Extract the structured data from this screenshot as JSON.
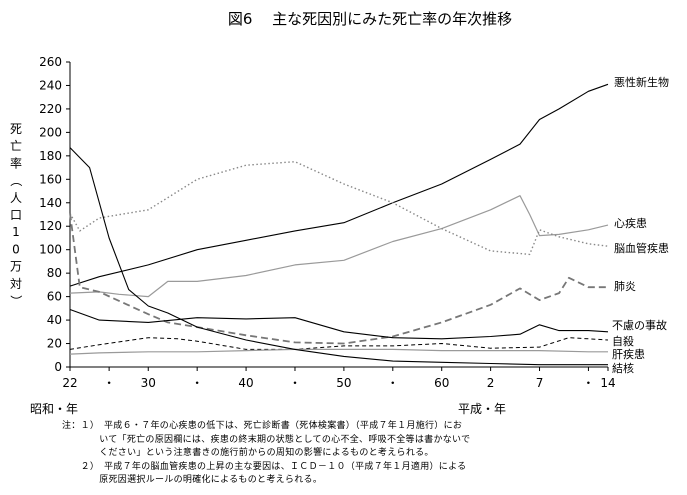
{
  "chart_data": {
    "type": "line",
    "title": "図6　 主な死因別にみた死亡率の年次推移",
    "ylabel": "死亡率（人口10万対）",
    "ylim": [
      0,
      260
    ],
    "yticks": [
      0,
      20,
      40,
      60,
      80,
      100,
      120,
      140,
      160,
      180,
      200,
      220,
      240,
      260
    ],
    "x_range": [
      1947,
      2002
    ],
    "xtick_positions": [
      1947,
      1951,
      1955,
      1960,
      1965,
      1970,
      1975,
      1980,
      1985,
      1990,
      1995,
      2000,
      2002
    ],
    "xtick_labels": [
      "22",
      "・",
      "30",
      "・",
      "40",
      "・",
      "50",
      "・",
      "60",
      "2",
      "7",
      "・",
      "14"
    ],
    "era_labels": {
      "showa": "昭和・年",
      "heisei": "平成・年"
    },
    "grid": false,
    "series": [
      {
        "name": "悪性新生物",
        "style": "solid",
        "x": [
          1947,
          1950,
          1955,
          1960,
          1965,
          1970,
          1975,
          1980,
          1985,
          1990,
          1993,
          1995,
          1997,
          2000,
          2002
        ],
        "y": [
          69,
          77,
          87,
          100,
          108,
          116,
          123,
          140,
          156,
          177,
          190,
          211,
          220,
          235,
          241
        ]
      },
      {
        "name": "心疾患",
        "style": "solid-gray",
        "x": [
          1947,
          1950,
          1952,
          1955,
          1957,
          1960,
          1965,
          1970,
          1975,
          1980,
          1985,
          1990,
          1993,
          1994,
          1995,
          1997,
          2000,
          2002
        ],
        "y": [
          63,
          64,
          62,
          60,
          73,
          73,
          78,
          87,
          91,
          107,
          118,
          134,
          146,
          130,
          112,
          113,
          117,
          121
        ]
      },
      {
        "name": "脳血管疾患",
        "style": "dotted",
        "x": [
          1947,
          1948,
          1950,
          1955,
          1960,
          1965,
          1970,
          1975,
          1980,
          1985,
          1990,
          1994,
          1995,
          1997,
          2000,
          2002
        ],
        "y": [
          131,
          116,
          127,
          134,
          160,
          172,
          175,
          156,
          140,
          118,
          99,
          96,
          117,
          111,
          105,
          103
        ]
      },
      {
        "name": "肺炎",
        "style": "dashed",
        "x": [
          1947,
          1948,
          1950,
          1955,
          1957,
          1960,
          1965,
          1970,
          1975,
          1980,
          1985,
          1990,
          1993,
          1995,
          1997,
          1998,
          2000,
          2002
        ],
        "y": [
          131,
          68,
          64,
          45,
          38,
          34,
          27,
          21,
          20,
          26,
          38,
          53,
          67,
          57,
          63,
          76,
          68,
          68
        ]
      },
      {
        "name": "不慮の事故",
        "style": "solid",
        "x": [
          1947,
          1950,
          1955,
          1960,
          1965,
          1970,
          1975,
          1980,
          1985,
          1990,
          1993,
          1995,
          1997,
          2000,
          2002
        ],
        "y": [
          49,
          40,
          38,
          42,
          41,
          42,
          30,
          25,
          24,
          26,
          28,
          36,
          31,
          31,
          30
        ]
      },
      {
        "name": "自殺",
        "style": "dashed-fine",
        "x": [
          1947,
          1950,
          1955,
          1958,
          1960,
          1965,
          1970,
          1975,
          1980,
          1985,
          1990,
          1995,
          1998,
          2000,
          2002
        ],
        "y": [
          15,
          19,
          25,
          24,
          22,
          15,
          15,
          18,
          18,
          20,
          16,
          17,
          25,
          24,
          23
        ]
      },
      {
        "name": "肝疾患",
        "style": "solid-gray",
        "x": [
          1947,
          1950,
          1955,
          1960,
          1965,
          1970,
          1975,
          1980,
          1985,
          1990,
          1995,
          2000,
          2002
        ],
        "y": [
          11,
          12,
          13,
          13,
          14,
          15,
          15,
          15,
          14,
          14,
          14,
          13,
          13
        ]
      },
      {
        "name": "結核",
        "style": "solid",
        "x": [
          1947,
          1949,
          1951,
          1953,
          1955,
          1957,
          1960,
          1965,
          1970,
          1975,
          1980,
          1985,
          1990,
          1995,
          2000,
          2002
        ],
        "y": [
          187,
          170,
          110,
          66,
          52,
          46,
          34,
          23,
          15,
          9,
          5,
          4,
          3,
          2,
          2,
          2
        ]
      }
    ]
  },
  "notes": [
    "注：１）　平成６・７年の心疾患の低下は、死亡診断書（死体検案書）（平成７年１月施行）にお",
    "　　　　いて「死亡の原因欄には、疾患の終末期の状態としての心不全、呼吸不全等は書かないで",
    "　　　　ください」という注意書きの施行前からの周知の影響によるものと考えられる。",
    "　　２）　平成７年の脳血管疾患の上昇の主な要因は、ＩＣＤ－１０（平成７年１月適用）による",
    "　　　　原死因選択ルールの明確化によるものと考えられる。"
  ]
}
